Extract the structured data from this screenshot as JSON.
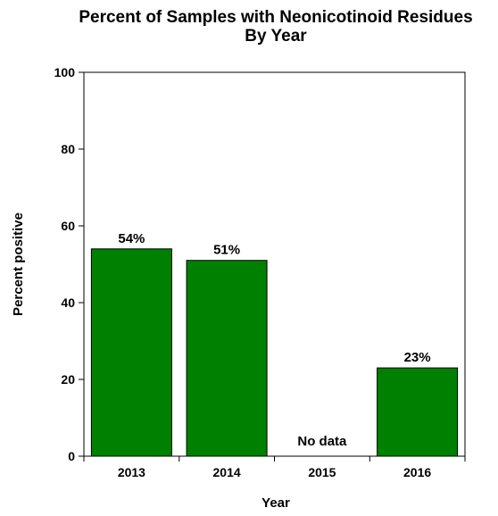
{
  "chart_data": {
    "type": "bar",
    "title": "Percent of Samples with Neonicotinoid Residues",
    "subtitle": "By Year",
    "xlabel": "Year",
    "ylabel": "Percent positive",
    "categories": [
      "2013",
      "2014",
      "2015",
      "2016"
    ],
    "values": [
      54,
      51,
      null,
      23
    ],
    "data_labels": [
      "54%",
      "51%",
      "No data",
      "23%"
    ],
    "ylim": [
      0,
      100
    ],
    "yticks": [
      0,
      20,
      40,
      60,
      80,
      100
    ],
    "grid": false,
    "legend": "none",
    "bar_color": "#008000",
    "bar_edge_color": "#000000"
  }
}
